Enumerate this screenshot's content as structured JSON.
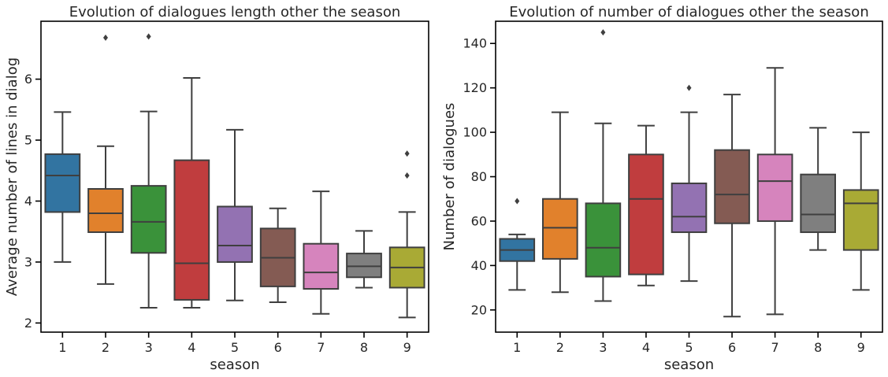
{
  "chart_data": [
    {
      "type": "box",
      "title": "Evolution of dialogues length other the season",
      "xlabel": "season",
      "ylabel": "Average number of lines in dialog",
      "categories": [
        "1",
        "2",
        "3",
        "4",
        "5",
        "6",
        "7",
        "8",
        "9"
      ],
      "ylim": [
        1.85,
        6.95
      ],
      "yticks": [
        2,
        3,
        4,
        5,
        6
      ],
      "grid": false,
      "boxes": [
        {
          "whislo": 3.0,
          "q1": 3.82,
          "med": 4.42,
          "q3": 4.77,
          "whishi": 5.46,
          "fliers": [],
          "color": "#3274a1"
        },
        {
          "whislo": 2.64,
          "q1": 3.49,
          "med": 3.8,
          "q3": 4.2,
          "whishi": 4.9,
          "fliers": [
            6.68
          ],
          "color": "#e1812c"
        },
        {
          "whislo": 2.25,
          "q1": 3.15,
          "med": 3.66,
          "q3": 4.25,
          "whishi": 5.47,
          "fliers": [
            6.7
          ],
          "color": "#3a923a"
        },
        {
          "whislo": 2.25,
          "q1": 2.38,
          "med": 2.98,
          "q3": 4.67,
          "whishi": 6.02,
          "fliers": [],
          "color": "#c03d3e"
        },
        {
          "whislo": 2.37,
          "q1": 3.0,
          "med": 3.27,
          "q3": 3.91,
          "whishi": 5.17,
          "fliers": [],
          "color": "#9372b2"
        },
        {
          "whislo": 2.34,
          "q1": 2.6,
          "med": 3.07,
          "q3": 3.55,
          "whishi": 3.88,
          "fliers": [],
          "color": "#845b53"
        },
        {
          "whislo": 2.15,
          "q1": 2.56,
          "med": 2.83,
          "q3": 3.3,
          "whishi": 4.16,
          "fliers": [],
          "color": "#d684bd"
        },
        {
          "whislo": 2.58,
          "q1": 2.75,
          "med": 2.93,
          "q3": 3.14,
          "whishi": 3.51,
          "fliers": [],
          "color": "#7f7f7f"
        },
        {
          "whislo": 2.09,
          "q1": 2.58,
          "med": 2.91,
          "q3": 3.24,
          "whishi": 3.82,
          "fliers": [
            4.42,
            4.78
          ],
          "color": "#a9aa35"
        }
      ]
    },
    {
      "type": "box",
      "title": "Evolution of number of dialogues other the season",
      "xlabel": "season",
      "ylabel": "Number of dialogues",
      "categories": [
        "1",
        "2",
        "3",
        "4",
        "5",
        "6",
        "7",
        "8",
        "9"
      ],
      "ylim": [
        10,
        150
      ],
      "yticks": [
        20,
        40,
        60,
        80,
        100,
        120,
        140
      ],
      "grid": false,
      "boxes": [
        {
          "whislo": 29,
          "q1": 42,
          "med": 47,
          "q3": 52,
          "whishi": 54,
          "fliers": [
            69
          ],
          "color": "#3274a1"
        },
        {
          "whislo": 28,
          "q1": 43,
          "med": 57,
          "q3": 70,
          "whishi": 109,
          "fliers": [],
          "color": "#e1812c"
        },
        {
          "whislo": 24,
          "q1": 35,
          "med": 48,
          "q3": 68,
          "whishi": 104,
          "fliers": [
            145
          ],
          "color": "#3a923a"
        },
        {
          "whislo": 31,
          "q1": 36,
          "med": 70,
          "q3": 90,
          "whishi": 103,
          "fliers": [],
          "color": "#c03d3e"
        },
        {
          "whislo": 33,
          "q1": 55,
          "med": 62,
          "q3": 77,
          "whishi": 109,
          "fliers": [
            120
          ],
          "color": "#9372b2"
        },
        {
          "whislo": 17,
          "q1": 59,
          "med": 72,
          "q3": 92,
          "whishi": 117,
          "fliers": [],
          "color": "#845b53"
        },
        {
          "whislo": 18,
          "q1": 60,
          "med": 78,
          "q3": 90,
          "whishi": 129,
          "fliers": [],
          "color": "#d684bd"
        },
        {
          "whislo": 47,
          "q1": 55,
          "med": 63,
          "q3": 81,
          "whishi": 102,
          "fliers": [],
          "color": "#7f7f7f"
        },
        {
          "whislo": 29,
          "q1": 47,
          "med": 68,
          "q3": 74,
          "whishi": 100,
          "fliers": [],
          "color": "#a9aa35"
        }
      ]
    }
  ]
}
